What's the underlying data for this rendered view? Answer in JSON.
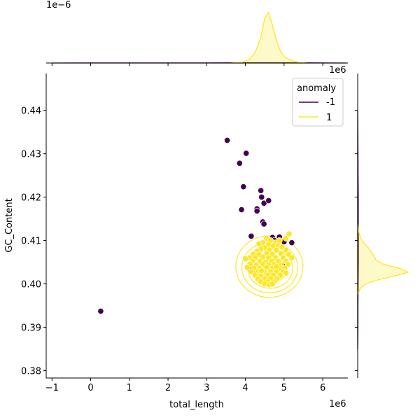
{
  "chart_data": {
    "type": "scatter",
    "title": "",
    "xlabel": "total_length",
    "ylabel": "GC_Content",
    "x_offset_label": "1e6",
    "y_offset_label": "",
    "top_marginal_offset_label": "1e−6",
    "right_marginal_offset_label": "1e6",
    "xlim": [
      -1.15,
      6.65
    ],
    "ylim": [
      0.3783,
      0.4485
    ],
    "xticks": [
      -1,
      0,
      1,
      2,
      3,
      4,
      5,
      6
    ],
    "yticks": [
      0.38,
      0.39,
      0.4,
      0.41,
      0.42,
      0.43,
      0.44
    ],
    "xtick_labels": [
      "−1",
      "0",
      "1",
      "2",
      "3",
      "4",
      "5",
      "6"
    ],
    "ytick_labels": [
      "0.38",
      "0.39",
      "0.40",
      "0.41",
      "0.42",
      "0.43",
      "0.44"
    ],
    "legend": {
      "title": "anomaly",
      "placement": "top-right",
      "entries": [
        {
          "label": "-1",
          "color": "#440154"
        },
        {
          "label": "1",
          "color": "#fde725"
        }
      ]
    },
    "series": [
      {
        "name": "-1",
        "color": "#440154",
        "points": [
          [
            0.26,
            0.3937
          ],
          [
            3.53,
            0.4331
          ],
          [
            3.85,
            0.4278
          ],
          [
            4.02,
            0.4301
          ],
          [
            3.95,
            0.4224
          ],
          [
            3.9,
            0.4171
          ],
          [
            4.4,
            0.4215
          ],
          [
            4.42,
            0.42
          ],
          [
            4.48,
            0.4186
          ],
          [
            4.6,
            0.4192
          ],
          [
            4.3,
            0.4173
          ],
          [
            4.3,
            0.4168
          ],
          [
            4.45,
            0.4143
          ],
          [
            4.48,
            0.4138
          ],
          [
            4.15,
            0.411
          ],
          [
            4.7,
            0.4107
          ],
          [
            4.75,
            0.41
          ],
          [
            4.88,
            0.4108
          ],
          [
            5.0,
            0.4097
          ],
          [
            5.2,
            0.4095
          ],
          [
            4.62,
            0.4094
          ],
          [
            4.2,
            0.4033
          ],
          [
            4.12,
            0.4033
          ],
          [
            4.28,
            0.403
          ],
          [
            4.97,
            0.4043
          ],
          [
            4.4,
            0.409
          ]
        ]
      },
      {
        "name": "1",
        "color": "#fde725",
        "points": [
          [
            4.55,
            0.4105
          ],
          [
            4.65,
            0.41
          ],
          [
            4.78,
            0.4095
          ],
          [
            4.88,
            0.41
          ],
          [
            5.13,
            0.4115
          ],
          [
            5.05,
            0.4105
          ],
          [
            4.45,
            0.4095
          ],
          [
            4.35,
            0.4092
          ],
          [
            4.6,
            0.409
          ],
          [
            4.72,
            0.4088
          ],
          [
            4.85,
            0.4088
          ],
          [
            4.95,
            0.4085
          ],
          [
            4.5,
            0.4083
          ],
          [
            4.4,
            0.408
          ],
          [
            4.3,
            0.4075
          ],
          [
            4.62,
            0.4078
          ],
          [
            4.8,
            0.4078
          ],
          [
            5.05,
            0.4078
          ],
          [
            4.2,
            0.4068
          ],
          [
            4.35,
            0.4068
          ],
          [
            4.55,
            0.407
          ],
          [
            4.7,
            0.4068
          ],
          [
            4.92,
            0.407
          ],
          [
            5.12,
            0.4068
          ],
          [
            4.1,
            0.406
          ],
          [
            4.25,
            0.406
          ],
          [
            4.45,
            0.4062
          ],
          [
            4.6,
            0.406
          ],
          [
            4.78,
            0.406
          ],
          [
            4.98,
            0.406
          ],
          [
            5.2,
            0.406
          ],
          [
            4.0,
            0.4058
          ],
          [
            4.18,
            0.4052
          ],
          [
            4.38,
            0.4052
          ],
          [
            4.52,
            0.405
          ],
          [
            4.68,
            0.4052
          ],
          [
            4.85,
            0.4052
          ],
          [
            5.05,
            0.4052
          ],
          [
            4.12,
            0.4045
          ],
          [
            4.28,
            0.4043
          ],
          [
            4.45,
            0.4045
          ],
          [
            4.6,
            0.4043
          ],
          [
            4.75,
            0.4045
          ],
          [
            4.92,
            0.4043
          ],
          [
            5.1,
            0.4045
          ],
          [
            4.05,
            0.4038
          ],
          [
            4.22,
            0.4036
          ],
          [
            4.38,
            0.4036
          ],
          [
            4.55,
            0.4038
          ],
          [
            4.7,
            0.4036
          ],
          [
            4.88,
            0.4036
          ],
          [
            5.02,
            0.4036
          ],
          [
            4.15,
            0.4028
          ],
          [
            4.32,
            0.4028
          ],
          [
            4.48,
            0.4028
          ],
          [
            4.65,
            0.4028
          ],
          [
            4.8,
            0.4028
          ],
          [
            4.98,
            0.4028
          ],
          [
            4.25,
            0.402
          ],
          [
            4.4,
            0.402
          ],
          [
            4.58,
            0.402
          ],
          [
            4.72,
            0.402
          ],
          [
            4.9,
            0.402
          ],
          [
            5.05,
            0.4025
          ],
          [
            4.32,
            0.4012
          ],
          [
            4.5,
            0.4012
          ],
          [
            4.65,
            0.4012
          ],
          [
            4.82,
            0.4012
          ],
          [
            4.4,
            0.4005
          ],
          [
            4.58,
            0.4005
          ],
          [
            4.75,
            0.4005
          ],
          [
            4.5,
            0.4
          ],
          [
            4.62,
            0.3998
          ],
          [
            4.7,
            0.4
          ],
          [
            4.42,
            0.403
          ],
          [
            4.8,
            0.404
          ]
        ]
      }
    ],
    "marginal_x": {
      "series": [
        {
          "name": "-1",
          "color": "#440154",
          "x": [
            -1.0,
            0.0,
            1.0,
            2.0,
            3.0,
            3.5,
            4.0,
            4.5,
            5.0,
            5.5,
            6.0,
            6.6
          ],
          "density": [
            0.0,
            0.0005,
            0.0005,
            0.0005,
            0.001,
            0.002,
            0.004,
            0.005,
            0.004,
            0.002,
            0.001,
            0.0
          ]
        },
        {
          "name": "1",
          "color": "#fde725",
          "x": [
            3.6,
            3.9,
            4.1,
            4.25,
            4.4,
            4.5,
            4.6,
            4.7,
            4.8,
            4.9,
            5.0,
            5.2,
            5.4,
            5.6
          ],
          "density": [
            0.0,
            0.01,
            0.06,
            0.18,
            0.45,
            0.78,
            0.88,
            0.66,
            0.4,
            0.22,
            0.11,
            0.04,
            0.01,
            0.0
          ]
        }
      ]
    },
    "marginal_y": {
      "series": [
        {
          "name": "-1",
          "color": "#440154",
          "y": [
            0.385,
            0.39,
            0.395,
            0.4,
            0.405,
            0.41,
            0.415,
            0.42,
            0.425,
            0.43,
            0.435,
            0.44
          ],
          "density": [
            0.0,
            0.005,
            0.005,
            0.01,
            0.015,
            0.015,
            0.012,
            0.012,
            0.008,
            0.006,
            0.003,
            0.0
          ]
        },
        {
          "name": "1",
          "color": "#fde725",
          "y": [
            0.3975,
            0.399,
            0.4,
            0.401,
            0.402,
            0.4027,
            0.4035,
            0.4045,
            0.4055,
            0.4065,
            0.4075,
            0.4085,
            0.4095,
            0.4105,
            0.412,
            0.414
          ],
          "density": [
            0.0,
            0.05,
            0.16,
            0.42,
            0.8,
            1.0,
            0.86,
            0.52,
            0.36,
            0.32,
            0.26,
            0.2,
            0.12,
            0.06,
            0.02,
            0.0
          ]
        }
      ]
    }
  }
}
